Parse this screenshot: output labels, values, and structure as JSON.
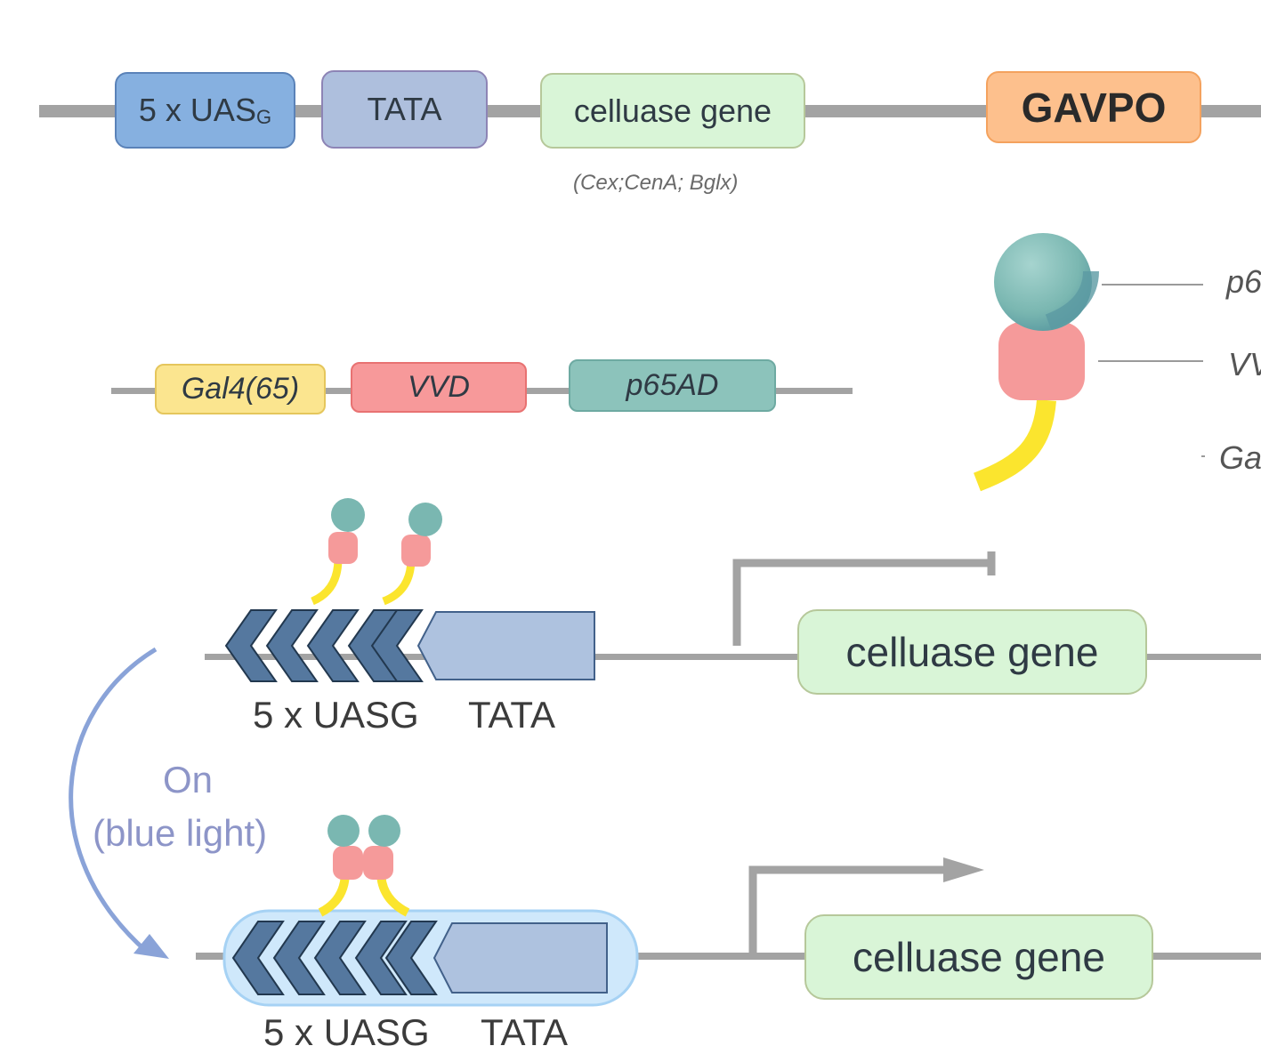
{
  "construct1": {
    "uas_label": "5 x UAS",
    "uas_subscript": "G",
    "tata_label": "TATA",
    "gene_label": "celluase gene",
    "gene_note": "(Cex;CenA; Bglx)",
    "gavpo_label": "GAVPO"
  },
  "construct2": {
    "gal4_label": "Gal4(65)",
    "vvd_label": "VVD",
    "p65_label": "p65AD"
  },
  "legend": {
    "p65_label": "p6",
    "vvd_label": "VV",
    "gal4_label": "Ga"
  },
  "off_state": {
    "uasg_label": "5 x UASG",
    "tata_label": "TATA",
    "gene_label": "celluase gene"
  },
  "on_state": {
    "label_on": "On",
    "label_light": "(blue light)",
    "uasg_label": "5 x UASG",
    "tata_label": "TATA",
    "gene_label": "celluase gene"
  },
  "colors": {
    "uas": "#86b0e0",
    "tata": "#aebfdd",
    "gene": "#d9f5d7",
    "gavpo": "#fdc08d",
    "gal4": "#fbe58f",
    "vvd": "#f7999a",
    "p65": "#8cc3bb",
    "arrow": "#8aa3d8"
  }
}
